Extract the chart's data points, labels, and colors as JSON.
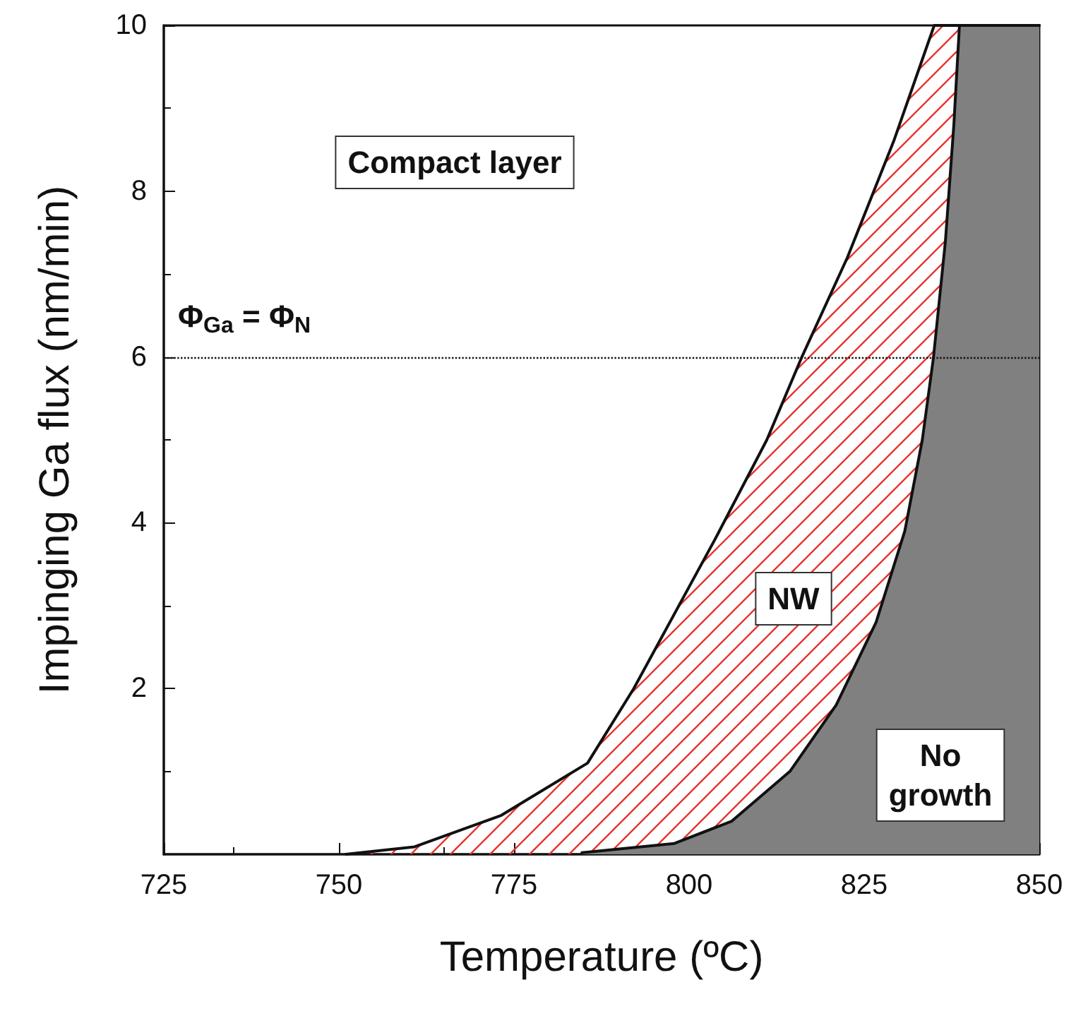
{
  "chart_data": {
    "type": "area",
    "xlabel": "Temperature (ºC)",
    "ylabel": "Impinging Ga flux (nm/min)",
    "xlim": [
      725,
      850
    ],
    "xticks": [
      725,
      750,
      775,
      800,
      825,
      850
    ],
    "ylim": [
      0,
      10
    ],
    "yticks": [
      2,
      4,
      6,
      8,
      10
    ],
    "grid": false,
    "marker": "none",
    "line_style": "solid",
    "series": [
      {
        "color": "#e8322f",
        "x": [
          751,
          760.8,
          773.2,
          785.5,
          792.1,
          803.7,
          811.1,
          816.1,
          822.6,
          829.2,
          835,
          850
        ],
        "values": [
          0,
          0.09,
          0.47,
          1.1,
          2.0,
          3.8,
          5.0,
          6.0,
          7.2,
          8.6,
          10,
          10
        ]
      },
      {
        "color": "#808080",
        "x": [
          784.7,
          797.9,
          806.1,
          814.4,
          821,
          826.7,
          830.8,
          833.3,
          834.9,
          836.6,
          837.8,
          838.6,
          850
        ],
        "values": [
          0.02,
          0.13,
          0.4,
          1.0,
          1.8,
          2.8,
          3.9,
          5.0,
          6.0,
          7.4,
          8.8,
          10,
          10
        ]
      }
    ],
    "ref_lines": [
      {
        "axis": "y",
        "value": 6,
        "label": "Φ$_{Ga}$ = Φ$_{N}$",
        "line_style": "dotted"
      }
    ],
    "annotations": [
      "Compact layer",
      "NW",
      "No\ngrowth"
    ]
  }
}
